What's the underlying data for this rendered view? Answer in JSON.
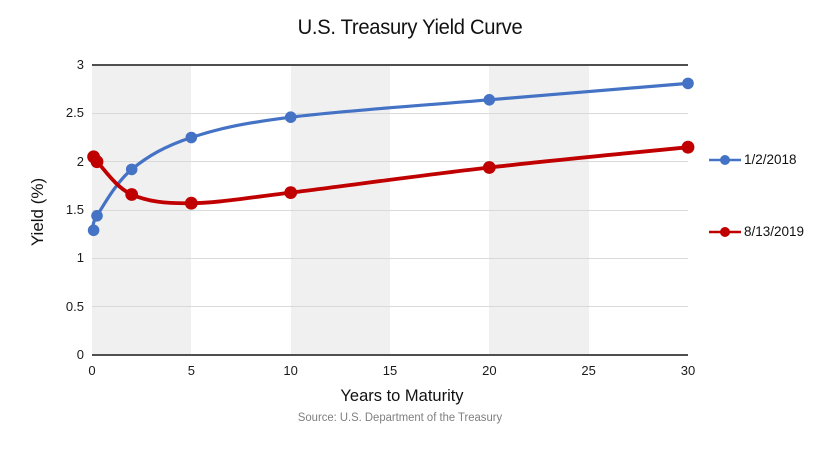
{
  "chart": {
    "title": "U.S. Treasury Yield Curve",
    "source": "Source: U.S. Department of the Treasury"
  },
  "chart_data": {
    "type": "line",
    "title": "U.S. Treasury Yield Curve",
    "xlabel": "Years to Maturity",
    "ylabel": "Yield (%)",
    "x": [
      0.08,
      0.25,
      2,
      5,
      10,
      20,
      30
    ],
    "series": [
      {
        "name": "1/2/2018",
        "color": "#4472C4",
        "values": [
          1.29,
          1.44,
          1.92,
          2.25,
          2.46,
          2.64,
          2.81
        ]
      },
      {
        "name": "8/13/2019",
        "color": "#C00000",
        "values": [
          2.05,
          2.0,
          1.66,
          1.57,
          1.68,
          1.94,
          2.15
        ]
      }
    ],
    "xlim": [
      0,
      30
    ],
    "ylim": [
      0,
      3
    ],
    "x_ticks": [
      0,
      5,
      10,
      15,
      20,
      25,
      30
    ],
    "x_tick_labels": [
      "0",
      "5",
      "10",
      "15",
      "20",
      "25",
      "30"
    ],
    "y_ticks": [
      0,
      0.5,
      1,
      1.5,
      2,
      2.5,
      3
    ],
    "y_tick_labels": [
      "0",
      "0.5",
      "1",
      "1.5",
      "2",
      "2.5",
      "3"
    ],
    "background_bands": [
      [
        0,
        5
      ],
      [
        10,
        15
      ],
      [
        20,
        25
      ]
    ],
    "grid": "horizontal",
    "legend_position": "right",
    "line_style": "smooth",
    "colors": {
      "band": "#f0f0f0",
      "gridline": "#d9d9d9",
      "axis_line": "#4f4f4f",
      "source_text": "#7f7f7f"
    }
  }
}
